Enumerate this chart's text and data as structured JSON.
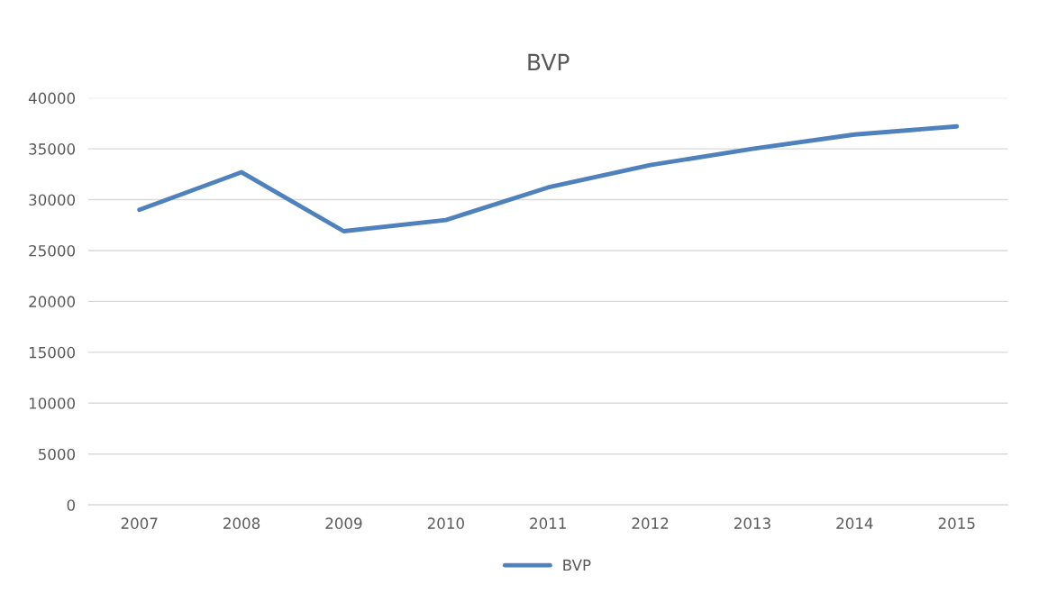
{
  "chart_data": {
    "type": "line",
    "title": "BVP",
    "categories": [
      "2007",
      "2008",
      "2009",
      "2010",
      "2011",
      "2012",
      "2013",
      "2014",
      "2015"
    ],
    "series": [
      {
        "name": "BVP",
        "color": "#4f81bd",
        "values": [
          29000,
          32700,
          26900,
          28000,
          31200,
          33400,
          35000,
          36400,
          37200
        ]
      }
    ],
    "ylim": [
      0,
      40000
    ],
    "yticks": [
      0,
      5000,
      10000,
      15000,
      20000,
      25000,
      30000,
      35000,
      40000
    ],
    "grid": "y",
    "legend": "bottom",
    "marker": "none",
    "line_style": "solid"
  }
}
